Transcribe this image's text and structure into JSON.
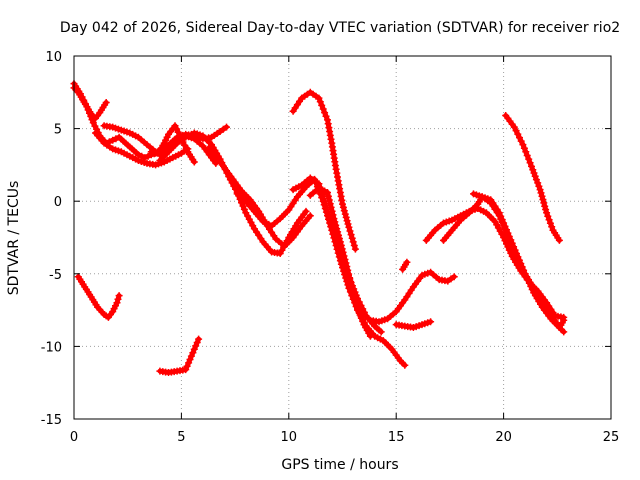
{
  "chart_data": {
    "type": "scatter",
    "title": "Day 042 of 2026, Sidereal Day-to-day VTEC variation (SDTVAR) for receiver rio2",
    "xlabel": "GPS time / hours",
    "ylabel": "SDTVAR / TECUs",
    "xlim": [
      0,
      25
    ],
    "ylim": [
      -15,
      10
    ],
    "xticks": [
      0,
      5,
      10,
      15,
      20,
      25
    ],
    "yticks": [
      -15,
      -10,
      -5,
      0,
      5,
      10
    ],
    "grid": true,
    "marker": "+",
    "color": "#ff0000",
    "series": [
      {
        "name": "s1",
        "x": [
          0.0,
          0.2,
          0.4,
          0.6,
          0.8,
          1.0,
          1.2,
          1.5
        ],
        "y": [
          7.8,
          7.5,
          7.0,
          6.5,
          6.0,
          5.7,
          6.1,
          6.8
        ]
      },
      {
        "name": "s2",
        "x": [
          0.0,
          0.3,
          0.6,
          0.9,
          1.2,
          1.5,
          1.8,
          2.1,
          2.4,
          2.7,
          3.0,
          3.3,
          3.6,
          4.0,
          4.4,
          4.8,
          5.2,
          5.6,
          6.0,
          6.3,
          6.6
        ],
        "y": [
          8.1,
          7.4,
          6.5,
          5.4,
          4.5,
          4.0,
          4.2,
          4.4,
          4.0,
          3.6,
          3.2,
          3.0,
          3.2,
          3.4,
          3.8,
          4.2,
          4.5,
          4.3,
          3.8,
          3.2,
          2.6
        ]
      },
      {
        "name": "s3",
        "x": [
          1.0,
          1.4,
          1.8,
          2.2,
          2.6,
          3.0,
          3.4,
          3.8,
          4.2,
          4.6,
          5.0,
          5.3
        ],
        "y": [
          4.7,
          4.0,
          3.6,
          3.4,
          3.1,
          2.8,
          2.6,
          2.5,
          2.7,
          3.0,
          3.3,
          3.6
        ]
      },
      {
        "name": "s4",
        "x": [
          1.4,
          1.8,
          2.2,
          2.6,
          3.0,
          3.4,
          3.8,
          4.0,
          4.2,
          4.5,
          4.8,
          5.2,
          5.6,
          6.0,
          6.4,
          6.8,
          7.1
        ],
        "y": [
          5.2,
          5.1,
          4.9,
          4.7,
          4.4,
          3.9,
          3.4,
          3.2,
          3.6,
          4.0,
          4.4,
          4.6,
          4.5,
          4.3,
          4.4,
          4.8,
          5.1
        ]
      },
      {
        "name": "s5",
        "x": [
          3.6,
          3.8,
          4.0,
          4.2,
          4.4,
          4.7,
          5.0,
          5.3,
          5.6
        ],
        "y": [
          3.4,
          3.3,
          3.5,
          4.0,
          4.6,
          5.2,
          4.3,
          3.4,
          2.7
        ]
      },
      {
        "name": "s6",
        "x": [
          4.0,
          4.4,
          4.8,
          5.2,
          5.6,
          6.0,
          6.4,
          6.8,
          7.2,
          7.6,
          8.0,
          8.4,
          8.8,
          9.2,
          9.6,
          10.0,
          10.4,
          10.8
        ],
        "y": [
          2.8,
          3.4,
          4.0,
          4.4,
          4.7,
          4.5,
          3.9,
          2.9,
          1.7,
          0.6,
          -0.8,
          -1.9,
          -2.8,
          -3.5,
          -3.6,
          -2.5,
          -1.5,
          -0.7
        ]
      },
      {
        "name": "s7",
        "x": [
          6.3,
          6.6,
          7.0,
          7.4,
          7.8,
          8.2,
          8.6,
          9.0,
          9.4,
          9.8,
          10.2,
          10.6,
          11.0
        ],
        "y": [
          3.7,
          3.1,
          2.3,
          1.5,
          0.7,
          0.1,
          -0.7,
          -1.7,
          -2.6,
          -3.1,
          -2.5,
          -1.7,
          -1.0
        ]
      },
      {
        "name": "s8",
        "x": [
          7.6,
          8.0,
          8.4,
          8.8,
          9.2,
          9.6,
          10.0,
          10.4,
          10.8,
          11.2,
          11.6,
          12.0,
          12.4,
          12.8,
          13.2,
          13.6,
          14.0,
          14.4,
          14.8,
          15.2,
          15.4
        ],
        "y": [
          0.5,
          0.0,
          -0.7,
          -1.4,
          -1.7,
          -1.2,
          -0.6,
          0.3,
          1.0,
          1.5,
          0.0,
          -2.0,
          -4.1,
          -6.0,
          -7.5,
          -8.6,
          -9.3,
          -9.6,
          -10.2,
          -11.0,
          -11.3
        ]
      },
      {
        "name": "s9",
        "x": [
          10.2,
          10.6,
          11.0,
          11.4,
          11.8,
          12.0,
          12.2,
          12.5,
          12.8,
          13.1
        ],
        "y": [
          6.2,
          7.1,
          7.5,
          7.1,
          5.6,
          4.0,
          2.2,
          -0.2,
          -1.8,
          -3.3
        ]
      },
      {
        "name": "s10",
        "x": [
          10.2,
          10.6,
          11.0,
          11.4,
          11.7,
          12.0,
          12.3,
          12.6,
          12.9,
          13.2,
          13.6,
          14.0,
          14.3
        ],
        "y": [
          0.8,
          1.1,
          1.6,
          1.2,
          -0.3,
          -1.8,
          -3.2,
          -4.4,
          -5.6,
          -6.7,
          -7.9,
          -8.6,
          -9.0
        ]
      },
      {
        "name": "s11",
        "x": [
          11.0,
          11.4,
          11.8,
          12.1,
          12.4,
          12.7,
          13.0,
          13.2,
          13.5,
          13.8
        ],
        "y": [
          0.4,
          0.9,
          0.6,
          -1.2,
          -2.8,
          -4.5,
          -6.3,
          -7.4,
          -8.5,
          -9.3
        ]
      },
      {
        "name": "s12",
        "x": [
          13.8,
          14.2,
          14.6,
          15.0,
          15.4,
          15.8,
          16.2,
          16.6,
          17.0,
          17.4,
          17.7
        ],
        "y": [
          -8.2,
          -8.3,
          -8.1,
          -7.6,
          -6.8,
          -5.9,
          -5.1,
          -4.9,
          -5.4,
          -5.5,
          -5.2
        ]
      },
      {
        "name": "s13",
        "x": [
          15.0,
          15.4,
          15.8,
          16.2,
          16.6
        ],
        "y": [
          -8.5,
          -8.6,
          -8.7,
          -8.5,
          -8.3
        ]
      },
      {
        "name": "s14",
        "x": [
          15.3,
          15.5
        ],
        "y": [
          -4.7,
          -4.2
        ]
      },
      {
        "name": "s15",
        "x": [
          16.4,
          16.8,
          17.2,
          17.6,
          18.0,
          18.4,
          18.8,
          19.2,
          19.6,
          20.0,
          20.4,
          20.8,
          21.2,
          21.6,
          22.0,
          22.4,
          22.8
        ],
        "y": [
          -2.7,
          -2.0,
          -1.5,
          -1.3,
          -1.0,
          -0.7,
          -0.5,
          -0.8,
          -1.4,
          -2.5,
          -3.8,
          -4.8,
          -5.6,
          -6.2,
          -7.0,
          -7.9,
          -8.0
        ]
      },
      {
        "name": "s16",
        "x": [
          17.2,
          17.6,
          18.0,
          18.4,
          18.8,
          19.0,
          19.4,
          19.8,
          20.2,
          20.6,
          21.0,
          21.4,
          21.8,
          22.2,
          22.6,
          22.8
        ],
        "y": [
          -2.7,
          -2.0,
          -1.3,
          -0.8,
          -0.2,
          0.3,
          0.1,
          -0.8,
          -2.2,
          -3.6,
          -5.0,
          -6.3,
          -7.3,
          -8.1,
          -8.7,
          -8.2
        ]
      },
      {
        "name": "s17",
        "x": [
          18.6,
          19.0,
          19.4,
          19.8,
          20.2,
          20.6,
          21.0,
          21.4,
          21.8,
          22.2,
          22.6,
          22.8
        ],
        "y": [
          0.5,
          0.3,
          -0.1,
          -1.0,
          -2.4,
          -3.8,
          -5.0,
          -6.0,
          -7.0,
          -7.8,
          -8.7,
          -9.0
        ]
      },
      {
        "name": "s18",
        "x": [
          20.1,
          20.5,
          20.9,
          21.3,
          21.7,
          22.0,
          22.3,
          22.6
        ],
        "y": [
          5.9,
          5.1,
          3.9,
          2.4,
          0.8,
          -0.8,
          -2.0,
          -2.7
        ]
      },
      {
        "name": "s19",
        "x": [
          0.2,
          0.5,
          0.8,
          1.1,
          1.4,
          1.6,
          1.8,
          2.0,
          2.1
        ],
        "y": [
          -5.2,
          -5.9,
          -6.6,
          -7.3,
          -7.8,
          -8.0,
          -7.6,
          -7.0,
          -6.5
        ]
      },
      {
        "name": "s20",
        "x": [
          4.0,
          4.4,
          4.8,
          5.2,
          5.4,
          5.6,
          5.8
        ],
        "y": [
          -11.7,
          -11.8,
          -11.7,
          -11.6,
          -10.9,
          -10.2,
          -9.5
        ]
      }
    ]
  }
}
